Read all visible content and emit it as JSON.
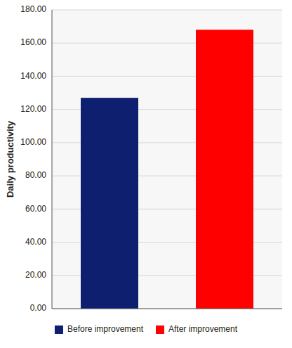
{
  "chart_data": {
    "type": "bar",
    "categories": [
      "Before improvement",
      "After improvement"
    ],
    "values": [
      127.0,
      168.0
    ],
    "colors": [
      "#0d1f6e",
      "#ff0000"
    ],
    "y_label": "Daily productivity",
    "ylim": [
      0,
      180
    ],
    "yticks": [
      {
        "value": 0,
        "label": "0.00"
      },
      {
        "value": 20,
        "label": "20.00"
      },
      {
        "value": 40,
        "label": "40.00"
      },
      {
        "value": 60,
        "label": "60.00"
      },
      {
        "value": 80,
        "label": "80.00"
      },
      {
        "value": 100,
        "label": "100.00"
      },
      {
        "value": 120,
        "label": "120.00"
      },
      {
        "value": 140,
        "label": "140.00"
      },
      {
        "value": 160,
        "label": "160.00"
      },
      {
        "value": 180,
        "label": "180.00"
      }
    ],
    "grid": true,
    "legend": "bottom",
    "tick_labels": "y"
  }
}
